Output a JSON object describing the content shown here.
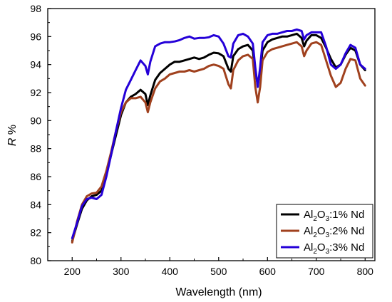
{
  "chart_data": {
    "type": "line",
    "title": "",
    "xlabel": "Wavelength (nm)",
    "ylabel_main": "R",
    "ylabel_unit": " %",
    "xlim": [
      150,
      820
    ],
    "ylim": [
      80,
      98
    ],
    "xticks": [
      "200",
      "300",
      "400",
      "500",
      "600",
      "700",
      "800"
    ],
    "yticks": [
      "80",
      "82",
      "84",
      "86",
      "88",
      "90",
      "92",
      "94",
      "96",
      "98"
    ],
    "grid": false,
    "legend_position": "bottom-right",
    "series": [
      {
        "name": "Al2O3:1% Nd",
        "label_parts": [
          "Al",
          "2",
          "O",
          "3",
          ":1% Nd"
        ],
        "color": "#000000",
        "points": [
          [
            200,
            81.4
          ],
          [
            210,
            82.6
          ],
          [
            220,
            83.7
          ],
          [
            230,
            84.3
          ],
          [
            240,
            84.6
          ],
          [
            250,
            84.7
          ],
          [
            260,
            85.0
          ],
          [
            270,
            86.2
          ],
          [
            280,
            87.6
          ],
          [
            290,
            89.0
          ],
          [
            300,
            90.4
          ],
          [
            310,
            91.3
          ],
          [
            320,
            91.7
          ],
          [
            330,
            91.9
          ],
          [
            340,
            92.2
          ],
          [
            350,
            91.9
          ],
          [
            355,
            91.1
          ],
          [
            360,
            91.8
          ],
          [
            370,
            92.9
          ],
          [
            380,
            93.4
          ],
          [
            390,
            93.7
          ],
          [
            400,
            94.0
          ],
          [
            410,
            94.2
          ],
          [
            420,
            94.2
          ],
          [
            430,
            94.3
          ],
          [
            440,
            94.4
          ],
          [
            450,
            94.5
          ],
          [
            460,
            94.4
          ],
          [
            470,
            94.5
          ],
          [
            480,
            94.7
          ],
          [
            490,
            94.85
          ],
          [
            500,
            94.8
          ],
          [
            510,
            94.6
          ],
          [
            520,
            93.7
          ],
          [
            525,
            93.5
          ],
          [
            530,
            94.6
          ],
          [
            540,
            95.1
          ],
          [
            550,
            95.3
          ],
          [
            560,
            95.4
          ],
          [
            570,
            95.0
          ],
          [
            575,
            93.5
          ],
          [
            580,
            92.6
          ],
          [
            585,
            93.5
          ],
          [
            590,
            95.0
          ],
          [
            600,
            95.6
          ],
          [
            610,
            95.8
          ],
          [
            620,
            95.9
          ],
          [
            630,
            96.0
          ],
          [
            640,
            96.0
          ],
          [
            650,
            96.1
          ],
          [
            660,
            96.2
          ],
          [
            670,
            95.9
          ],
          [
            675,
            95.3
          ],
          [
            680,
            95.7
          ],
          [
            690,
            96.1
          ],
          [
            700,
            96.1
          ],
          [
            710,
            95.9
          ],
          [
            720,
            95.2
          ],
          [
            730,
            94.4
          ],
          [
            740,
            93.8
          ],
          [
            750,
            94.0
          ],
          [
            760,
            94.7
          ],
          [
            770,
            95.2
          ],
          [
            780,
            95.0
          ],
          [
            790,
            94.0
          ],
          [
            800,
            93.6
          ]
        ]
      },
      {
        "name": "Al2O3:2% Nd",
        "label_parts": [
          "Al",
          "2",
          "O",
          "3",
          ":2% Nd"
        ],
        "color": "#a0411e",
        "points": [
          [
            200,
            81.3
          ],
          [
            210,
            82.8
          ],
          [
            220,
            84.0
          ],
          [
            230,
            84.6
          ],
          [
            240,
            84.8
          ],
          [
            250,
            84.85
          ],
          [
            260,
            85.3
          ],
          [
            270,
            86.4
          ],
          [
            280,
            87.8
          ],
          [
            290,
            89.3
          ],
          [
            300,
            90.6
          ],
          [
            310,
            91.3
          ],
          [
            320,
            91.6
          ],
          [
            330,
            91.6
          ],
          [
            340,
            91.7
          ],
          [
            350,
            91.3
          ],
          [
            355,
            90.6
          ],
          [
            360,
            91.3
          ],
          [
            370,
            92.3
          ],
          [
            380,
            92.8
          ],
          [
            390,
            93.0
          ],
          [
            400,
            93.3
          ],
          [
            410,
            93.4
          ],
          [
            420,
            93.5
          ],
          [
            430,
            93.5
          ],
          [
            440,
            93.6
          ],
          [
            450,
            93.5
          ],
          [
            460,
            93.6
          ],
          [
            470,
            93.7
          ],
          [
            480,
            93.9
          ],
          [
            490,
            94.0
          ],
          [
            500,
            93.9
          ],
          [
            510,
            93.7
          ],
          [
            520,
            92.6
          ],
          [
            525,
            92.3
          ],
          [
            530,
            93.6
          ],
          [
            540,
            94.3
          ],
          [
            550,
            94.6
          ],
          [
            560,
            94.7
          ],
          [
            570,
            94.4
          ],
          [
            575,
            92.4
          ],
          [
            580,
            91.3
          ],
          [
            585,
            92.4
          ],
          [
            590,
            94.3
          ],
          [
            600,
            94.9
          ],
          [
            610,
            95.1
          ],
          [
            620,
            95.2
          ],
          [
            630,
            95.3
          ],
          [
            640,
            95.4
          ],
          [
            650,
            95.5
          ],
          [
            660,
            95.6
          ],
          [
            670,
            95.3
          ],
          [
            675,
            94.6
          ],
          [
            680,
            95.0
          ],
          [
            690,
            95.5
          ],
          [
            700,
            95.6
          ],
          [
            710,
            95.4
          ],
          [
            720,
            94.3
          ],
          [
            730,
            93.2
          ],
          [
            740,
            92.4
          ],
          [
            750,
            92.7
          ],
          [
            760,
            93.7
          ],
          [
            770,
            94.4
          ],
          [
            780,
            94.3
          ],
          [
            790,
            93.0
          ],
          [
            800,
            92.5
          ]
        ]
      },
      {
        "name": "Al2O3:3% Nd",
        "label_parts": [
          "Al",
          "2",
          "O",
          "3",
          ":3% Nd"
        ],
        "color": "#2400d8",
        "points": [
          [
            200,
            81.6
          ],
          [
            210,
            82.7
          ],
          [
            220,
            83.9
          ],
          [
            230,
            84.4
          ],
          [
            240,
            84.5
          ],
          [
            250,
            84.4
          ],
          [
            260,
            84.7
          ],
          [
            270,
            86.0
          ],
          [
            280,
            87.6
          ],
          [
            290,
            89.3
          ],
          [
            300,
            90.9
          ],
          [
            310,
            92.2
          ],
          [
            320,
            92.9
          ],
          [
            330,
            93.6
          ],
          [
            340,
            94.3
          ],
          [
            350,
            93.9
          ],
          [
            355,
            93.3
          ],
          [
            360,
            94.2
          ],
          [
            370,
            95.3
          ],
          [
            380,
            95.5
          ],
          [
            390,
            95.6
          ],
          [
            400,
            95.6
          ],
          [
            410,
            95.65
          ],
          [
            420,
            95.75
          ],
          [
            430,
            95.9
          ],
          [
            440,
            96.0
          ],
          [
            450,
            95.85
          ],
          [
            460,
            95.9
          ],
          [
            470,
            95.9
          ],
          [
            480,
            95.95
          ],
          [
            490,
            96.1
          ],
          [
            500,
            96.0
          ],
          [
            510,
            95.5
          ],
          [
            520,
            94.6
          ],
          [
            525,
            94.5
          ],
          [
            530,
            95.5
          ],
          [
            540,
            96.1
          ],
          [
            550,
            96.2
          ],
          [
            560,
            96.0
          ],
          [
            570,
            95.5
          ],
          [
            575,
            93.8
          ],
          [
            580,
            92.4
          ],
          [
            585,
            93.8
          ],
          [
            590,
            95.6
          ],
          [
            600,
            96.1
          ],
          [
            610,
            96.2
          ],
          [
            620,
            96.2
          ],
          [
            630,
            96.3
          ],
          [
            640,
            96.4
          ],
          [
            650,
            96.4
          ],
          [
            660,
            96.5
          ],
          [
            670,
            96.4
          ],
          [
            675,
            95.8
          ],
          [
            680,
            96.1
          ],
          [
            690,
            96.3
          ],
          [
            700,
            96.3
          ],
          [
            710,
            96.3
          ],
          [
            720,
            95.3
          ],
          [
            730,
            94.0
          ],
          [
            740,
            93.7
          ],
          [
            750,
            94.0
          ],
          [
            760,
            94.8
          ],
          [
            770,
            95.4
          ],
          [
            780,
            95.2
          ],
          [
            790,
            94.0
          ],
          [
            800,
            93.7
          ]
        ]
      }
    ]
  }
}
